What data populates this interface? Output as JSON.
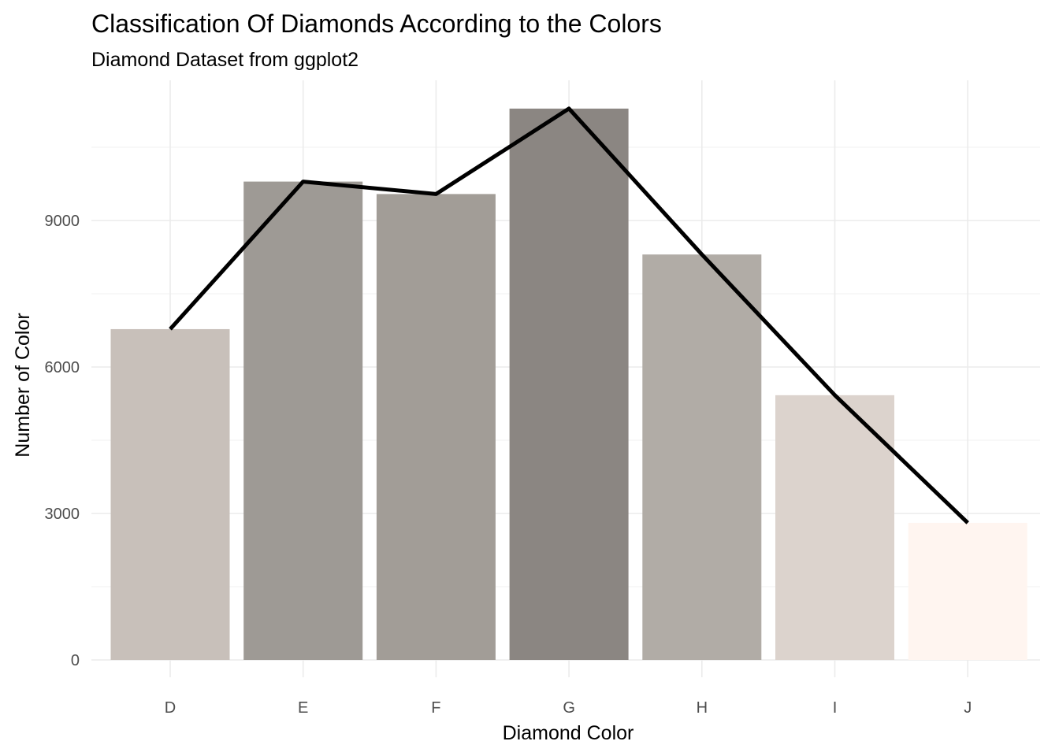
{
  "chart_data": {
    "type": "bar",
    "title": "Classification Of Diamonds According to the Colors",
    "subtitle": "Diamond Dataset from ggplot2",
    "xlabel": "Diamond Color",
    "ylabel": "Number of Color",
    "categories": [
      "D",
      "E",
      "F",
      "G",
      "H",
      "I",
      "J"
    ],
    "values": [
      6775,
      9797,
      9542,
      11292,
      8304,
      5422,
      2808
    ],
    "bar_colors": [
      "#c8c0ba",
      "#9e9a95",
      "#a29d97",
      "#8b8682",
      "#b1aca6",
      "#dcd3cd",
      "#fff5f0"
    ],
    "line": {
      "values": [
        6775,
        9797,
        9542,
        11292,
        8304,
        5422,
        2808
      ],
      "color": "#000000"
    },
    "ylim": [
      0,
      12000
    ],
    "yticks": [
      0,
      3000,
      6000,
      9000
    ],
    "yticks_labels": [
      "0",
      "3000",
      "6000",
      "9000"
    ],
    "grid": true,
    "legend": "none"
  }
}
